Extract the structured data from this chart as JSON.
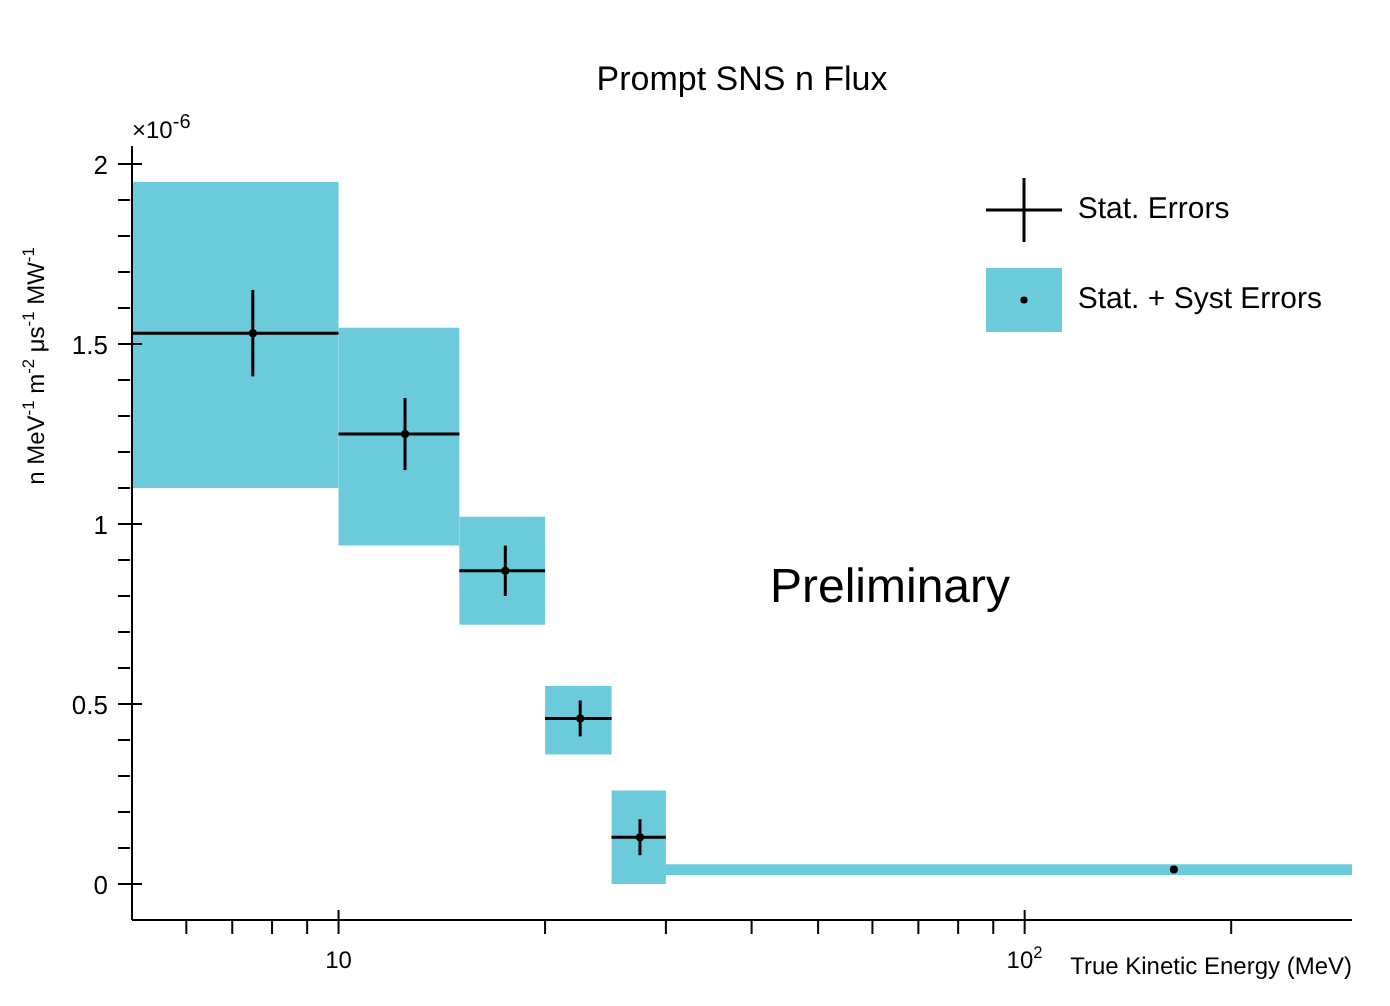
{
  "chart_data": {
    "type": "scatter",
    "title": "Prompt SNS n Flux",
    "xlabel": "True Kinetic Energy (MeV)",
    "ylabel": "n MeV$^{-1}$ m$^{-2}$ μs$^{-1}$ MW$^{-1}$",
    "annotations": [
      "×10$^{-6}$",
      "Preliminary"
    ],
    "log": "x",
    "legend": "top right",
    "marker": "circle",
    "xlim": [
      5,
      300
    ],
    "xticks": [
      {
        "value": 6,
        "label": null
      },
      {
        "value": 7,
        "label": null
      },
      {
        "value": 8,
        "label": null
      },
      {
        "value": 9,
        "label": null
      },
      10,
      {
        "value": 20,
        "label": null
      },
      {
        "value": 30,
        "label": null
      },
      {
        "value": 40,
        "label": null
      },
      {
        "value": 50,
        "label": null
      },
      {
        "value": 60,
        "label": null
      },
      {
        "value": 70,
        "label": null
      },
      {
        "value": 80,
        "label": null
      },
      {
        "value": 90,
        "label": null
      },
      {
        "value": 100,
        "label": "10$^{2}$"
      },
      {
        "value": 200,
        "label": null
      }
    ],
    "ylim": [
      -0.1,
      2.05
    ],
    "yticks": [
      0,
      {
        "value": 0.1,
        "label": null
      },
      {
        "value": 0.2,
        "label": null
      },
      {
        "value": 0.3,
        "label": null
      },
      {
        "value": 0.4,
        "label": null
      },
      0.5,
      {
        "value": 0.6,
        "label": null
      },
      {
        "value": 0.7,
        "label": null
      },
      {
        "value": 0.8,
        "label": null
      },
      {
        "value": 0.9,
        "label": null
      },
      1,
      {
        "value": 1.1,
        "label": null
      },
      {
        "value": 1.2,
        "label": null
      },
      {
        "value": 1.3,
        "label": null
      },
      {
        "value": 1.4,
        "label": null
      },
      1.5,
      {
        "value": 1.6,
        "label": null
      },
      {
        "value": 1.7,
        "label": null
      },
      {
        "value": 1.8,
        "label": null
      },
      {
        "value": 1.9,
        "label": null
      },
      2
    ],
    "series": [
      {
        "type": "histogram",
        "name": "Stat. + Syst Errors",
        "color": "#6ccbdb",
        "bins": [
          5,
          10,
          15,
          20,
          25,
          30,
          300
        ],
        "base": [
          1.1,
          0.94,
          0.72,
          0.36,
          0,
          0.025
        ],
        "values": [
          0.85,
          0.605,
          0.3,
          0.19,
          0.26,
          0.03
        ]
      },
      {
        "type": "scatter",
        "name": "Stat. Errors",
        "color": "#000000",
        "x": [
          7.5,
          12.5,
          17.5,
          22.5,
          27.5,
          165
        ],
        "values": [
          1.53,
          1.25,
          0.87,
          0.46,
          0.13,
          0.04
        ],
        "errors": [
          0.12,
          0.1,
          0.07,
          0.05,
          0.05,
          null
        ],
        "xerrors": [
          2.5,
          2.5,
          2.5,
          2.5,
          2.5,
          null
        ]
      }
    ]
  }
}
